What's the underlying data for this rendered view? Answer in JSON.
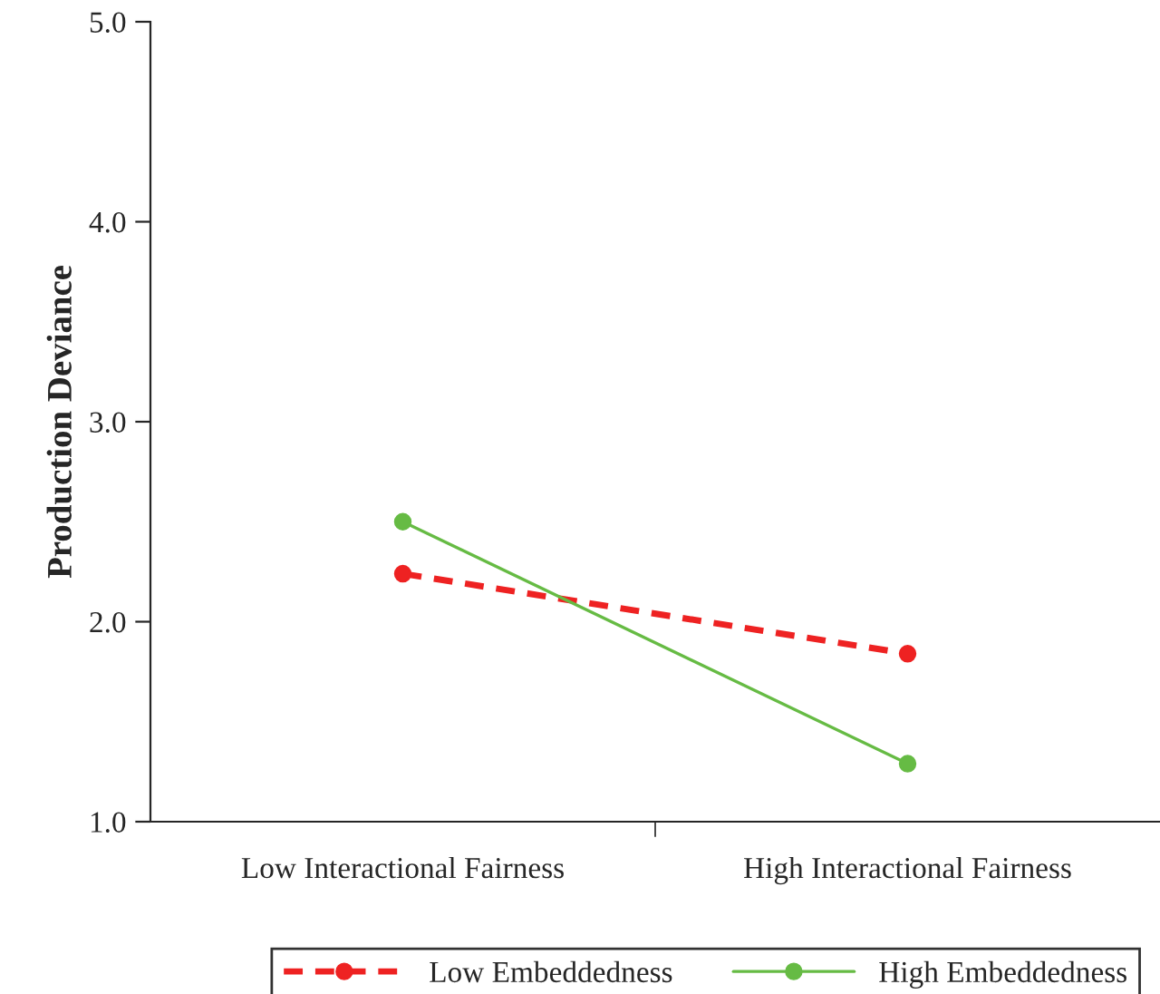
{
  "chart_data": {
    "type": "line",
    "ylabel": "Production Deviance",
    "categories": [
      "Low Interactional Fairness",
      "High Interactional Fairness"
    ],
    "series": [
      {
        "name": "Low Embeddedness",
        "color": "#ee2222",
        "values": [
          2.24,
          1.84
        ],
        "line_style": "dashed"
      },
      {
        "name": "High Embeddedness",
        "color": "#66bb44",
        "values": [
          2.5,
          1.29
        ],
        "line_style": "solid"
      }
    ],
    "ylim": [
      1.0,
      5.0
    ],
    "yticks": [
      {
        "value": 1.0,
        "label": "1.0"
      },
      {
        "value": 2.0,
        "label": "2.0"
      },
      {
        "value": 3.0,
        "label": "3.0"
      },
      {
        "value": 4.0,
        "label": "4.0"
      },
      {
        "value": 5.0,
        "label": "5.0"
      }
    ],
    "marker": "circle",
    "legend": "bottom",
    "grid": false
  }
}
